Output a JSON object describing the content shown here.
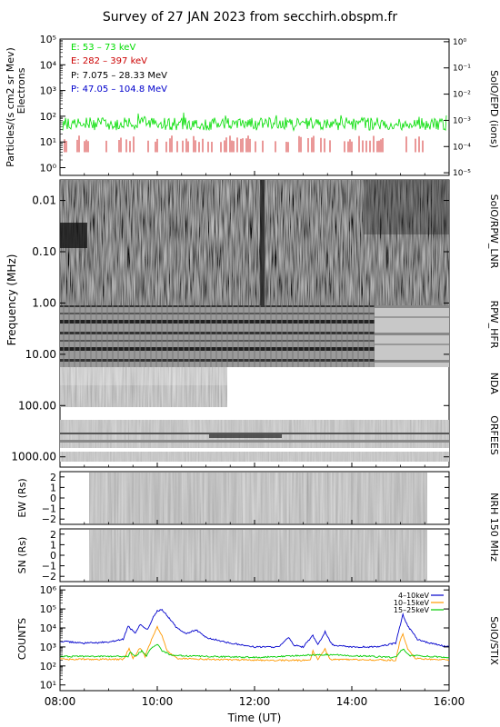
{
  "title": "Survey of 27 JAN 2023 from secchirh.obspm.fr",
  "colors": {
    "electrons_low": "#00dd00",
    "electrons_high": "#cc0000",
    "protons_low": "#000000",
    "protons_high": "#0000cc",
    "stix_4_10": "#0000cc",
    "stix_10_15": "#ff9900",
    "stix_15_25": "#00cc00"
  },
  "x_axis": {
    "label": "Time (UT)",
    "ticks": [
      "08:00",
      "10:00",
      "12:00",
      "14:00",
      "16:00"
    ],
    "range_hours": [
      8,
      16
    ]
  },
  "chart_data": [
    {
      "type": "line",
      "id": "epd",
      "instrument_label": "SolO/EPD (ions)",
      "ylabel": "Particles/(s cm2 sr Mev)",
      "ylabel2": "Electrons",
      "ylim_log": [
        0,
        5
      ],
      "y_ticks": [
        "10⁰",
        "10¹",
        "10²",
        "10³",
        "10⁴",
        "10⁵"
      ],
      "y2lim_log": [
        -5,
        0
      ],
      "y2_ticks": [
        "10⁻⁵",
        "10⁻⁴",
        "10⁻³",
        "10⁻²",
        "10⁻¹",
        "10⁰"
      ],
      "legend": [
        {
          "label": "E: 53 – 73 keV",
          "color": "#00dd00"
        },
        {
          "label": "E: 282 – 397 keV",
          "color": "#cc0000"
        },
        {
          "label": "P: 7.075 – 28.33 MeV",
          "color": "#000000"
        },
        {
          "label": "P: 47.05 – 104.8 MeV",
          "color": "#0000cc"
        }
      ],
      "series": [
        {
          "label": "E: 53 – 73 keV",
          "level_log": 1.7,
          "spread_log": 0.25
        },
        {
          "label": "E: 282 – 397 keV",
          "level_log": 0.8,
          "sparse": true
        }
      ]
    },
    {
      "type": "heatmap",
      "id": "radio",
      "ylabel": "Frequency (MHz)",
      "y_ticks": [
        "0.01",
        "0.10",
        "1.00",
        "10.00",
        "100.00",
        "1000.00"
      ],
      "ylim_log": [
        -2.4,
        3.2
      ],
      "bands": [
        {
          "label": "SolO/RPW_LNR",
          "freq_mhz": [
            0.004,
            0.4
          ]
        },
        {
          "label": "RPW_HFR",
          "freq_mhz": [
            0.4,
            17
          ]
        },
        {
          "label": "NDA",
          "freq_mhz": [
            17,
            80
          ]
        },
        {
          "label": "ORFEES",
          "freq_mhz": [
            144,
            1000
          ]
        }
      ]
    },
    {
      "type": "heatmap",
      "id": "nrh_ew",
      "ylabel": "EW (Rs)",
      "ylim": [
        -2.5,
        2.5
      ],
      "y_ticks": [
        "-2",
        "-1",
        "0",
        "1",
        "2"
      ],
      "coverage_hours": [
        8.6,
        15.55
      ]
    },
    {
      "type": "heatmap",
      "id": "nrh_sn",
      "ylabel": "SN (Rs)",
      "ylim": [
        -2.5,
        2.5
      ],
      "y_ticks": [
        "-2",
        "-1",
        "0",
        "1",
        "2"
      ],
      "coverage_hours": [
        8.6,
        15.55
      ],
      "instrument_label": "NRH 150 MHz"
    },
    {
      "type": "line",
      "id": "stix",
      "instrument_label": "SolO/STIX",
      "ylabel": "COUNTS",
      "ylim_log": [
        0.7,
        6.2
      ],
      "y_ticks": [
        "10¹",
        "10²",
        "10³",
        "10⁴",
        "10⁵",
        "10⁶"
      ],
      "series": [
        {
          "name": "4–10keV",
          "color": "#0000cc",
          "points": [
            [
              8.0,
              3.3
            ],
            [
              8.5,
              3.2
            ],
            [
              9.0,
              3.25
            ],
            [
              9.3,
              3.4
            ],
            [
              9.4,
              4.1
            ],
            [
              9.55,
              3.7
            ],
            [
              9.65,
              4.2
            ],
            [
              9.8,
              3.9
            ],
            [
              9.9,
              4.5
            ],
            [
              10.0,
              4.9
            ],
            [
              10.1,
              4.95
            ],
            [
              10.25,
              4.5
            ],
            [
              10.4,
              4.0
            ],
            [
              10.6,
              3.7
            ],
            [
              10.8,
              3.9
            ],
            [
              11.0,
              3.5
            ],
            [
              11.5,
              3.2
            ],
            [
              12.0,
              3.0
            ],
            [
              12.5,
              3.0
            ],
            [
              12.7,
              3.5
            ],
            [
              12.8,
              3.1
            ],
            [
              13.0,
              3.0
            ],
            [
              13.2,
              3.6
            ],
            [
              13.3,
              3.1
            ],
            [
              13.45,
              3.8
            ],
            [
              13.6,
              3.1
            ],
            [
              14.0,
              3.0
            ],
            [
              14.5,
              3.0
            ],
            [
              14.9,
              3.2
            ],
            [
              15.0,
              4.2
            ],
            [
              15.05,
              4.7
            ],
            [
              15.15,
              4.1
            ],
            [
              15.35,
              3.4
            ],
            [
              15.6,
              3.2
            ],
            [
              16.0,
              3.0
            ]
          ]
        },
        {
          "name": "10–15keV",
          "color": "#ff9900",
          "points": [
            [
              8.0,
              2.35
            ],
            [
              9.3,
              2.35
            ],
            [
              9.42,
              2.9
            ],
            [
              9.5,
              2.4
            ],
            [
              9.65,
              2.95
            ],
            [
              9.75,
              2.5
            ],
            [
              9.9,
              3.5
            ],
            [
              10.0,
              4.05
            ],
            [
              10.1,
              3.6
            ],
            [
              10.2,
              2.8
            ],
            [
              10.4,
              2.4
            ],
            [
              11.0,
              2.35
            ],
            [
              12.0,
              2.3
            ],
            [
              13.15,
              2.3
            ],
            [
              13.2,
              2.8
            ],
            [
              13.3,
              2.35
            ],
            [
              13.45,
              2.9
            ],
            [
              13.55,
              2.35
            ],
            [
              14.9,
              2.3
            ],
            [
              15.0,
              3.4
            ],
            [
              15.05,
              3.7
            ],
            [
              15.15,
              2.9
            ],
            [
              15.3,
              2.4
            ],
            [
              16.0,
              2.3
            ]
          ]
        },
        {
          "name": "15–25keV",
          "color": "#00cc00",
          "points": [
            [
              8.0,
              2.5
            ],
            [
              9.4,
              2.5
            ],
            [
              9.45,
              2.75
            ],
            [
              9.55,
              2.5
            ],
            [
              9.68,
              2.8
            ],
            [
              9.78,
              2.55
            ],
            [
              9.9,
              3.0
            ],
            [
              10.0,
              3.15
            ],
            [
              10.1,
              2.8
            ],
            [
              10.3,
              2.55
            ],
            [
              11.0,
              2.5
            ],
            [
              12.0,
              2.45
            ],
            [
              13.45,
              2.6
            ],
            [
              14.9,
              2.45
            ],
            [
              15.05,
              2.9
            ],
            [
              15.2,
              2.55
            ],
            [
              16.0,
              2.45
            ]
          ]
        }
      ]
    }
  ]
}
